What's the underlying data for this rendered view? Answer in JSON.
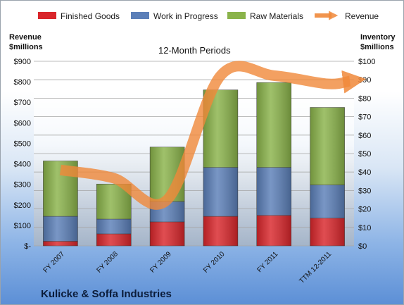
{
  "chart_data": {
    "type": "bar",
    "stacked": true,
    "title": "12-Month Periods",
    "footer_title": "Kulicke & Soffa Industries",
    "categories": [
      "FY 2007",
      "FY 2008",
      "FY 2009",
      "FY 2010",
      "FY 2011",
      "TTM 12-2011"
    ],
    "left_axis": {
      "label_line1": "Revenue",
      "label_line2": "$millions",
      "ylim": [
        0,
        900
      ],
      "ticks": [
        "$-",
        "$100",
        "$200",
        "$300",
        "$400",
        "$500",
        "$600",
        "$700",
        "$800",
        "$900"
      ]
    },
    "right_axis": {
      "label_line1": "Inventory",
      "label_line2": "$millions",
      "ylim": [
        0,
        100
      ],
      "ticks": [
        "$0",
        "$10",
        "$20",
        "$30",
        "$40",
        "$50",
        "$60",
        "$70",
        "$80",
        "$90",
        "$100"
      ]
    },
    "series": [
      {
        "name": "Finished Goods",
        "axis": "right",
        "color": "#d9262b",
        "values": [
          2.5,
          6.5,
          13,
          16,
          16.5,
          15
        ]
      },
      {
        "name": "Work in Progress",
        "axis": "right",
        "color": "#5b7fb8",
        "values": [
          13.5,
          8,
          11,
          26.5,
          26,
          18
        ]
      },
      {
        "name": "Raw Materials",
        "axis": "right",
        "color": "#8ab34a",
        "values": [
          30,
          19,
          29.5,
          42,
          46,
          42
        ]
      },
      {
        "name": "Revenue",
        "axis": "left",
        "type": "line",
        "color": "#f0883a",
        "values": [
          370,
          330,
          225,
          830,
          830,
          790
        ]
      }
    ],
    "legend_position": "top",
    "grid": true
  }
}
